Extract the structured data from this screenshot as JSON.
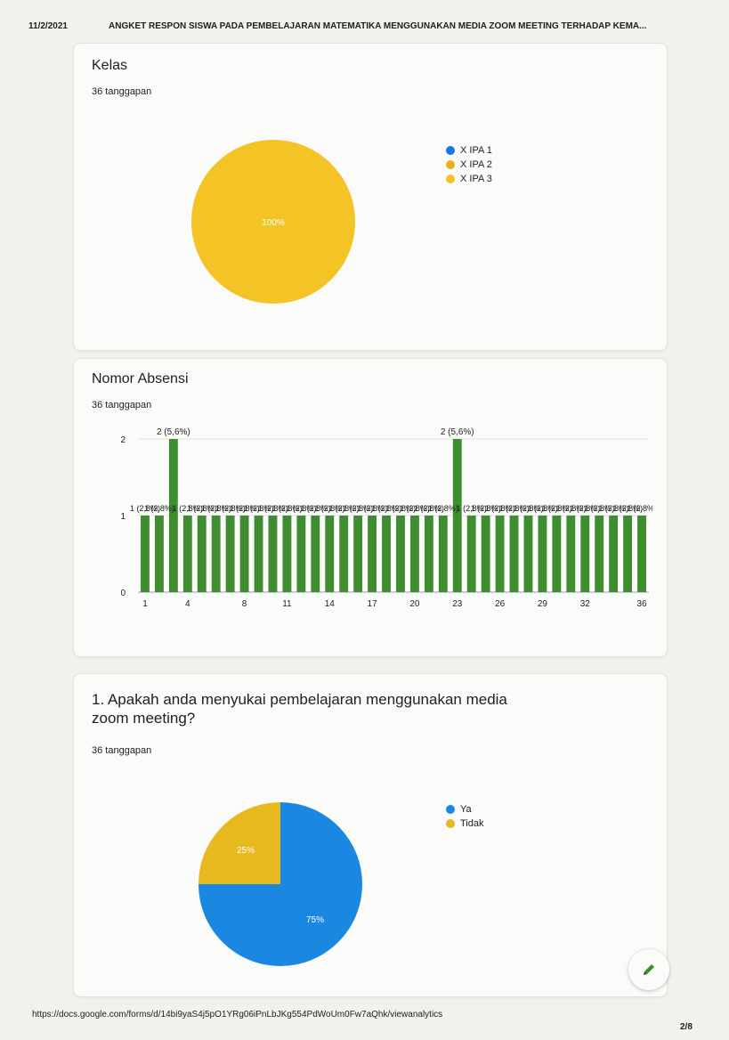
{
  "header": {
    "date": "11/2/2021",
    "title": "ANGKET RESPON SISWA PADA PEMBELAJARAN MATEMATIKA MENGGUNAKAN MEDIA ZOOM MEETING TERHADAP KEMA..."
  },
  "cards": [
    {
      "title": "Kelas",
      "responses": "36 tanggapan",
      "chart_data": {
        "type": "pie",
        "labels": [
          "X IPA 1",
          "X IPA 2",
          "X IPA 3"
        ],
        "values": [
          0,
          0,
          100
        ],
        "data_labels": [
          "",
          "",
          "100%"
        ],
        "colors": [
          "#1a73e8",
          "#e8b11d",
          "#f4c325"
        ],
        "legend_position": "right"
      }
    },
    {
      "title": "Nomor Absensi",
      "responses": "36 tanggapan",
      "chart_data": {
        "type": "bar",
        "categories": [
          "1",
          "2",
          "3",
          "4",
          "5",
          "6",
          "7",
          "8",
          "9",
          "10",
          "11",
          "12",
          "13",
          "14",
          "15",
          "16",
          "17",
          "18",
          "19",
          "20",
          "21",
          "22",
          "23",
          "24",
          "25",
          "26",
          "27",
          "28",
          "29",
          "30",
          "31",
          "32",
          "33",
          "34",
          "35",
          "36"
        ],
        "x_tick_labels": [
          "1",
          "4",
          "8",
          "11",
          "14",
          "17",
          "20",
          "23",
          "26",
          "29",
          "32",
          "36"
        ],
        "values": [
          1,
          1,
          2,
          1,
          1,
          1,
          1,
          1,
          1,
          1,
          1,
          1,
          1,
          1,
          1,
          1,
          1,
          1,
          1,
          1,
          1,
          1,
          2,
          1,
          1,
          1,
          1,
          1,
          1,
          1,
          1,
          1,
          1,
          1,
          1,
          1
        ],
        "data_labels": [
          "1 (2,8%)",
          "1 (2,8%)",
          "2 (5,6%)",
          "1 (2,8%)",
          "1 (2,8%)",
          "1 (2,8%)",
          "1 (2,8%)",
          "1 (2,8%)",
          "1 (2,8%)",
          "1 (2,8%)",
          "1 (2,8%)",
          "1 (2,8%)",
          "1 (2,8%)",
          "1 (2,8%)",
          "1 (2,8%)",
          "1 (2,8%)",
          "1 (2,8%)",
          "1 (2,8%)",
          "1 (2,8%)",
          "1 (2,8%)",
          "1 (2,8%)",
          "1 (2,8%)",
          "2 (5,6%)",
          "1 (2,8%)",
          "1 (2,8%)",
          "1 (2,8%)",
          "1 (2,8%)",
          "1 (2,8%)",
          "1 (2,8%)",
          "1 (2,8%)",
          "1 (2,8%)",
          "1 (2,8%)",
          "1 (2,8%)",
          "1 (2,8%)",
          "1 (2,8%)",
          "1 (2,8%)"
        ],
        "y_ticks": [
          "0",
          "1",
          "2"
        ],
        "ylim": [
          0,
          2
        ],
        "bar_color": "#3e8e2f",
        "grid": true
      }
    },
    {
      "title": "1. Apakah anda menyukai pembelajaran menggunakan media zoom meeting?",
      "responses": "36 tanggapan",
      "chart_data": {
        "type": "pie",
        "labels": [
          "Ya",
          "Tidak"
        ],
        "values": [
          75,
          25
        ],
        "data_labels": [
          "75%",
          "25%"
        ],
        "colors": [
          "#1a88e0",
          "#e8b81f"
        ],
        "legend_position": "right"
      }
    }
  ],
  "footer": {
    "url": "https://docs.google.com/forms/d/14bi9yaS4j5pO1YRg06iPnLbJKg554PdWoUm0Fw7aQhk/viewanalytics",
    "page": "2/8"
  },
  "icons": {
    "fab": "pencil-icon"
  }
}
